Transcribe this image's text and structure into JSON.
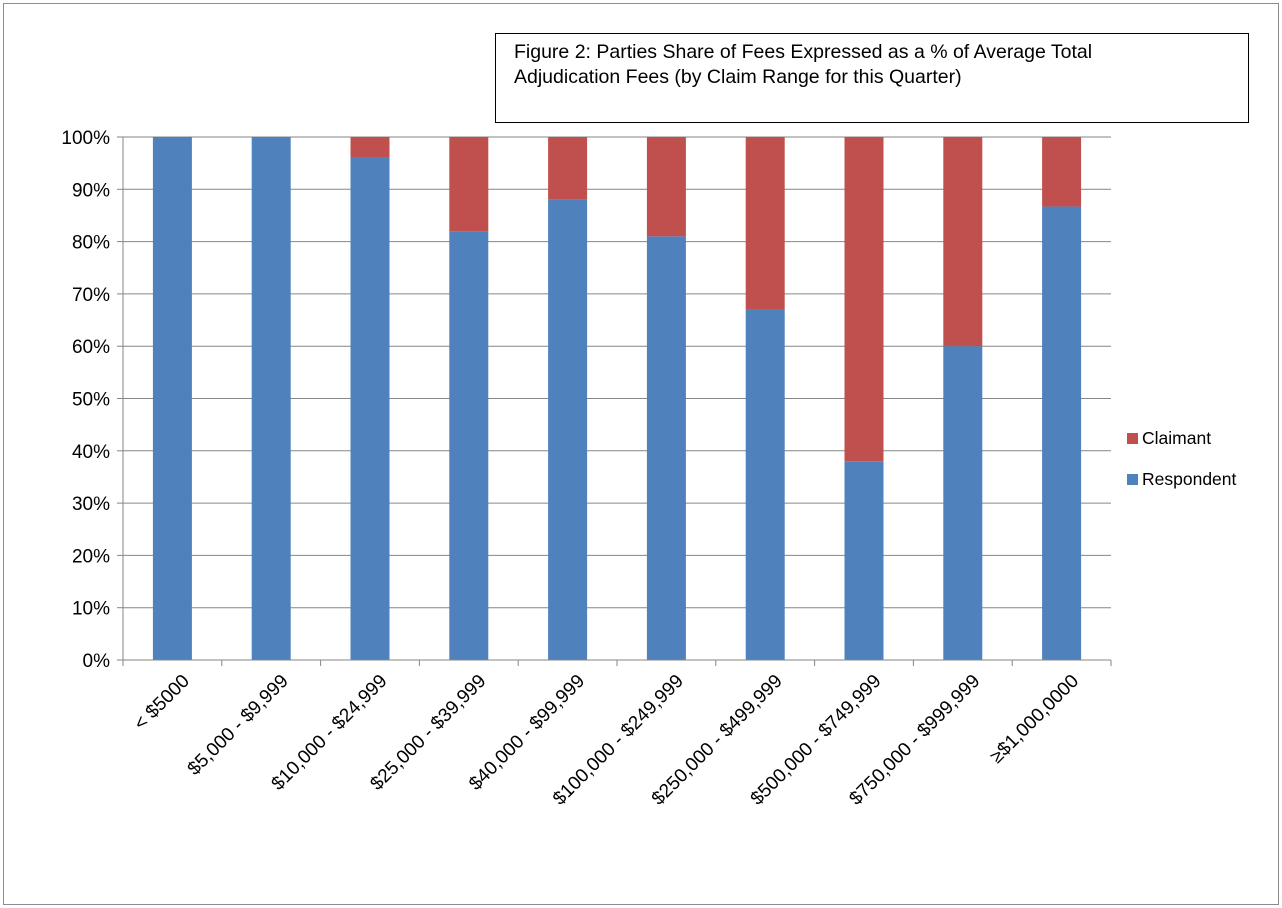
{
  "chart_data": {
    "type": "bar",
    "stacked": true,
    "title": [
      "Figure 2: Parties Share of Fees Expressed as a % of Average Total",
      "Adjudication Fees  (by Claim Range for this Quarter)"
    ],
    "categories": [
      "< $5000",
      "$5,000 - $9,999",
      "$10,000 - $24,999",
      "$25,000 - $39,999",
      "$40,000 - $99,999",
      "$100,000 - $249,999",
      "$250,000 - $499,999",
      "$500,000 - $749,999",
      "$750,000 - $999,999",
      "≥$1,000,0000"
    ],
    "series": [
      {
        "name": "Respondent",
        "color": "#4f81bd",
        "values": [
          100,
          100,
          96,
          82,
          88,
          81,
          67,
          38,
          60,
          86.7
        ]
      },
      {
        "name": "Claimant",
        "color": "#c0504d",
        "values": [
          0,
          0,
          4,
          18,
          12,
          19,
          33,
          62,
          40,
          13.3
        ]
      }
    ],
    "y_ticks": [
      "0%",
      "10%",
      "20%",
      "30%",
      "40%",
      "50%",
      "60%",
      "70%",
      "80%",
      "90%",
      "100%"
    ],
    "ylim": [
      0,
      100
    ],
    "grid": true,
    "legend": {
      "position": "right",
      "order": [
        "Claimant",
        "Respondent"
      ]
    },
    "xlabel": "",
    "ylabel": ""
  }
}
